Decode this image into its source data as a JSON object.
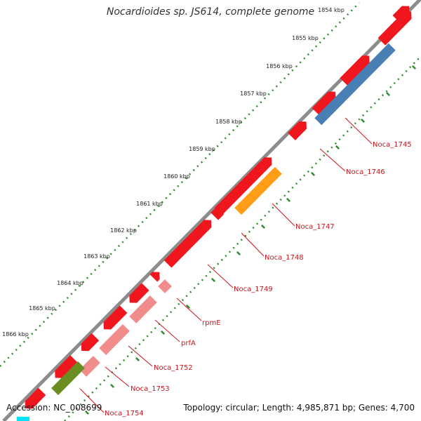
{
  "title": "Nocardioides sp. JS614, complete genome",
  "footer": {
    "accession": "Accession: NC_008699",
    "summary": "Topology: circular; Length: 4,985,871 bp; Genes: 4,700"
  },
  "ticks": [
    "1854 kbp",
    "1855 kbp",
    "1856 kbp",
    "1857 kbp",
    "1858 kbp",
    "1859 kbp",
    "1860 kbp",
    "1861 kbp",
    "1862 kbp",
    "1863 kbp",
    "1864 kbp",
    "1865 kbp",
    "1866 kbp"
  ],
  "gene_labels": [
    "Noca_1745",
    "Noca_1746",
    "Noca_1747",
    "Noca_1748",
    "Noca_1749",
    "rpmE",
    "prfA",
    "Noca_1752",
    "Noca_1753",
    "Noca_1754"
  ],
  "colors": {
    "backbone": "#8c8c8c",
    "gene_red": "#f0161d",
    "gene_pink": "#f08c8c",
    "gene_blue": "#4a7fb5",
    "gene_orange": "#ff9e16",
    "gene_green": "#6b8e23",
    "tick_green": "#2e8b2e",
    "label_red": "#c8141c",
    "tick_text": "#222222"
  }
}
